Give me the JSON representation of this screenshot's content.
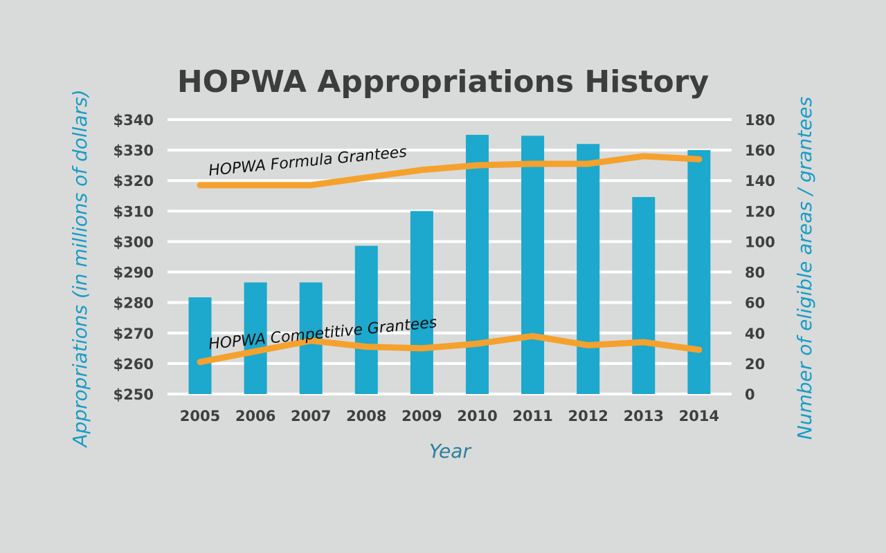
{
  "colors": {
    "background": "#d9dbda",
    "bar": "#1da8cd",
    "line": "#f5a12e",
    "grid": "#ffffff",
    "axis_label": "#1a9cc6",
    "x_axis_label": "#2b7f9e",
    "tick_text": "#3f3f3f"
  },
  "chart_data": {
    "type": "bar",
    "title": "HOPWA Appropriations History",
    "xlabel": "Year",
    "ylabel": "Appropriations (in millions of dollars)",
    "y2label": "Number of eligible areas / grantees",
    "categories": [
      "2005",
      "2006",
      "2007",
      "2008",
      "2009",
      "2010",
      "2011",
      "2012",
      "2013",
      "2014"
    ],
    "ylim": [
      250,
      340
    ],
    "y_ticks": [
      "$250",
      "$260",
      "$270",
      "$280",
      "$290",
      "$300",
      "$310",
      "$320",
      "$330",
      "$340"
    ],
    "y2lim": [
      0,
      180
    ],
    "y2_ticks": [
      "0",
      "20",
      "40",
      "60",
      "80",
      "100",
      "120",
      "140",
      "160",
      "180"
    ],
    "grid": true,
    "series": [
      {
        "type": "bar",
        "axis": "left",
        "values": [
          281.7,
          286.6,
          286.6,
          298.6,
          310,
          335,
          334.7,
          332,
          314.6,
          330
        ]
      },
      {
        "type": "line",
        "axis": "right",
        "name": "HOPWA Formula Grantees",
        "values": [
          137,
          137,
          137,
          142,
          147,
          150,
          151,
          151,
          156,
          154
        ]
      },
      {
        "type": "line",
        "axis": "right",
        "name": "HOPWA Competitive Grantees",
        "values": [
          21,
          28,
          35,
          31,
          30,
          33,
          38,
          32,
          34,
          29
        ]
      }
    ]
  }
}
